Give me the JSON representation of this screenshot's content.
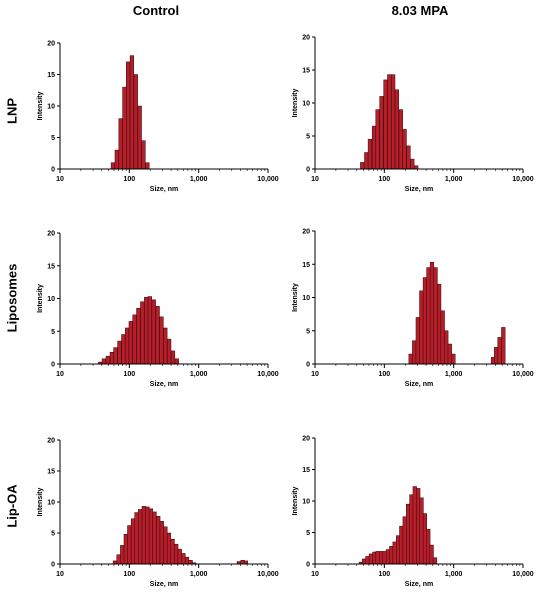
{
  "column_titles": [
    "Control",
    "8.03 MPA"
  ],
  "row_labels": [
    "LNP",
    "Liposomes",
    "Lip-OA"
  ],
  "colors": {
    "bar_fill": "#b81e2a",
    "bar_stroke": "#2a0a0a",
    "axis": "#000000"
  },
  "chart_data": [
    {
      "type": "bar",
      "panel": "LNP-Control",
      "xlabel": "Size, nm",
      "ylabel": "Intensity",
      "xscale": "log",
      "xlim": [
        10,
        10000
      ],
      "ylim": [
        0,
        20
      ],
      "xticks": [
        "10",
        "100",
        "1,000",
        "10,000"
      ],
      "yticks": [
        "0",
        "5",
        "10",
        "15",
        "20"
      ],
      "x": [
        58,
        66,
        75,
        85,
        96,
        109,
        124,
        141,
        160,
        182
      ],
      "values": [
        1.0,
        3.0,
        8.0,
        13.0,
        17.0,
        18.0,
        15.0,
        10.0,
        4.5,
        1.0
      ]
    },
    {
      "type": "bar",
      "panel": "LNP-8.03 MPA",
      "xlabel": "Size, nm",
      "ylabel": "Intensity",
      "xscale": "log",
      "xlim": [
        10,
        10000
      ],
      "ylim": [
        0,
        20
      ],
      "xticks": [
        "10",
        "100",
        "1,000",
        "10,000"
      ],
      "yticks": [
        "0",
        "5",
        "10",
        "15",
        "20"
      ],
      "x": [
        48,
        55,
        62,
        71,
        80,
        91,
        104,
        118,
        134,
        152,
        173,
        196,
        223,
        253,
        288
      ],
      "values": [
        1.0,
        2.5,
        4.5,
        6.5,
        9.0,
        11.0,
        13.5,
        14.3,
        14.3,
        12.0,
        9.0,
        6.0,
        3.5,
        1.5,
        0.5
      ]
    },
    {
      "type": "bar",
      "panel": "Liposomes-Control",
      "xlabel": "Size, nm",
      "ylabel": "Intensity",
      "xscale": "log",
      "xlim": [
        10,
        10000
      ],
      "ylim": [
        0,
        20
      ],
      "xticks": [
        "10",
        "100",
        "1,000",
        "10,000"
      ],
      "yticks": [
        "0",
        "5",
        "10",
        "15",
        "20"
      ],
      "x": [
        38,
        43,
        49,
        56,
        63,
        72,
        82,
        93,
        105,
        119,
        135,
        154,
        175,
        198,
        225,
        256,
        291,
        330,
        375,
        426,
        484
      ],
      "values": [
        0.3,
        0.8,
        1.2,
        1.8,
        2.5,
        3.5,
        4.5,
        5.5,
        6.5,
        7.5,
        8.5,
        9.5,
        10.2,
        10.3,
        9.8,
        8.8,
        7.2,
        5.5,
        3.8,
        2.0,
        0.8
      ]
    },
    {
      "type": "bar",
      "panel": "Liposomes-8.03 MPA",
      "xlabel": "Size, nm",
      "ylabel": "Intensity",
      "xscale": "log",
      "xlim": [
        10,
        10000
      ],
      "ylim": [
        0,
        20
      ],
      "xticks": [
        "10",
        "100",
        "1,000",
        "10,000"
      ],
      "yticks": [
        "0",
        "5",
        "10",
        "15",
        "20"
      ],
      "x": [
        240,
        270,
        304,
        342,
        385,
        433,
        487,
        548,
        617,
        695,
        782,
        880,
        990,
        3700,
        4100,
        4600,
        5200
      ],
      "values": [
        1.5,
        3.5,
        7.0,
        11.0,
        13.0,
        14.5,
        15.3,
        14.5,
        12.0,
        8.0,
        5.0,
        3.0,
        1.5,
        1.0,
        2.5,
        4.0,
        5.5
      ]
    },
    {
      "type": "bar",
      "panel": "Lip-OA-Control",
      "xlabel": "Size, nm",
      "ylabel": "Intensity",
      "xscale": "log",
      "xlim": [
        10,
        10000
      ],
      "ylim": [
        0,
        20
      ],
      "xticks": [
        "10",
        "100",
        "1,000",
        "10,000"
      ],
      "yticks": [
        "0",
        "5",
        "10",
        "15",
        "20"
      ],
      "x": [
        62,
        70,
        79,
        89,
        100,
        113,
        127,
        143,
        162,
        182,
        205,
        231,
        261,
        294,
        331,
        373,
        421,
        474,
        534,
        602,
        679,
        765,
        862,
        3800,
        4300,
        4800
      ],
      "values": [
        0.5,
        1.5,
        3.0,
        4.8,
        6.2,
        7.3,
        8.3,
        8.8,
        9.3,
        9.2,
        8.9,
        8.4,
        7.7,
        6.9,
        6.0,
        5.0,
        4.0,
        3.2,
        2.4,
        1.7,
        1.1,
        0.6,
        0.2,
        0.4,
        0.6,
        0.5
      ]
    },
    {
      "type": "bar",
      "panel": "Lip-OA-8.03 MPA",
      "xlabel": "Size, nm",
      "ylabel": "Intensity",
      "xscale": "log",
      "xlim": [
        10,
        10000
      ],
      "ylim": [
        0,
        20
      ],
      "xticks": [
        "10",
        "100",
        "1,000",
        "10,000"
      ],
      "yticks": [
        "0",
        "5",
        "10",
        "15",
        "20"
      ],
      "x": [
        46,
        51,
        57,
        64,
        72,
        80,
        90,
        101,
        113,
        126,
        141,
        158,
        176,
        197,
        220,
        246,
        275,
        308,
        344,
        385,
        430,
        481,
        538
      ],
      "values": [
        0.3,
        0.8,
        1.2,
        1.6,
        1.9,
        2.0,
        2.0,
        2.0,
        2.3,
        2.8,
        3.5,
        4.5,
        6.0,
        7.5,
        9.5,
        11.0,
        12.3,
        12.0,
        10.5,
        8.0,
        5.5,
        3.0,
        1.0
      ]
    }
  ]
}
